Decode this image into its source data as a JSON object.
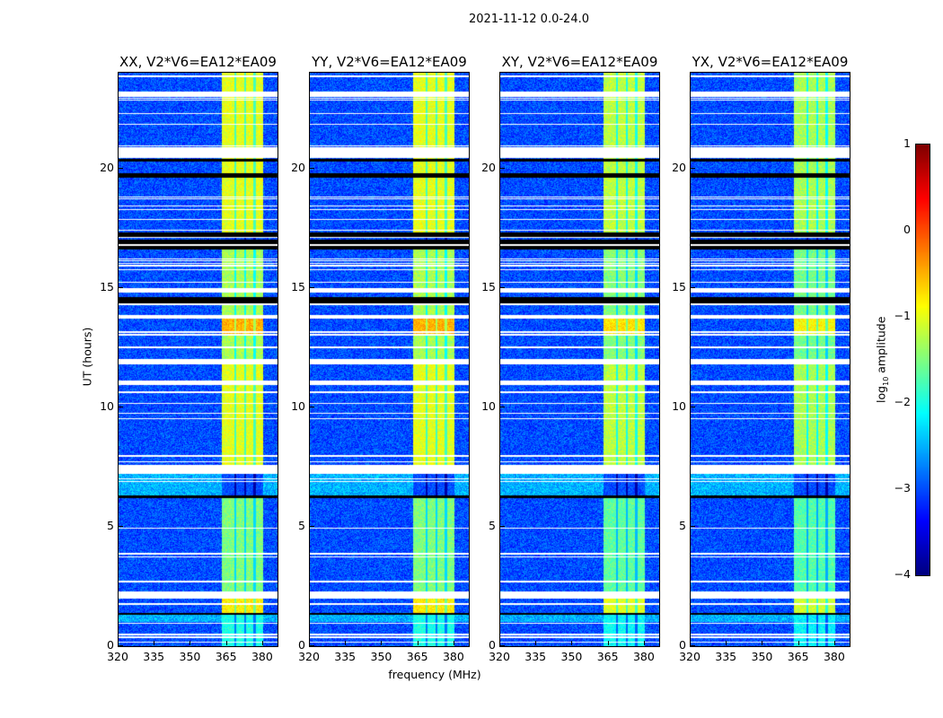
{
  "chart_data": {
    "type": "heatmap",
    "suptitle": "2021-11-12 0.0-24.0",
    "xlabel": "frequency (MHz)",
    "ylabel": "UT (hours)",
    "xlim": [
      320,
      386
    ],
    "ylim": [
      0,
      24
    ],
    "xticks": [
      320,
      335,
      350,
      365,
      380
    ],
    "yticks": [
      0,
      5,
      10,
      15,
      20
    ],
    "panels": [
      {
        "title": "XX, V2*V6=EA12*EA09",
        "band_scale": 1.0
      },
      {
        "title": "YY, V2*V6=EA12*EA09",
        "band_scale": 1.0
      },
      {
        "title": "XY, V2*V6=EA12*EA09",
        "band_scale": 0.9
      },
      {
        "title": "YX, V2*V6=EA12*EA09",
        "band_scale": 0.85
      }
    ],
    "colorbar": {
      "label": "log10 amplitude",
      "label_main": "log",
      "label_sub": "10",
      "label_rest": " amplitude",
      "colormap": "jet",
      "vmin": -4,
      "vmax": 1,
      "ticks": [
        1,
        0,
        -1,
        -2,
        -3,
        -4
      ],
      "tick_labels": [
        "1",
        "0",
        "−1",
        "−2",
        "−3",
        "−4"
      ]
    },
    "background_log_amp": -3.0,
    "rfi_band_mhz": [
      363,
      380
    ],
    "rfi_band_gaps_mhz": [
      368.5,
      372.5,
      376.5
    ],
    "band_segments_hours": [
      {
        "from": 0.0,
        "to": 1.3,
        "level": -2.0
      },
      {
        "from": 1.4,
        "to": 2.0,
        "level": -0.8
      },
      {
        "from": 2.3,
        "to": 6.2,
        "level": -1.5
      },
      {
        "from": 6.3,
        "to": 7.3,
        "level": -3.0
      },
      {
        "from": 7.6,
        "to": 11.8,
        "level": -1.0
      },
      {
        "from": 12.0,
        "to": 13.0,
        "level": -1.3
      },
      {
        "from": 13.0,
        "to": 13.7,
        "level": -0.5
      },
      {
        "from": 13.7,
        "to": 16.6,
        "level": -1.3
      },
      {
        "from": 17.3,
        "to": 20.5,
        "level": -1.0
      },
      {
        "from": 20.9,
        "to": 24.0,
        "level": -1.0
      }
    ],
    "flagged_white_hours": [
      [
        2.0,
        2.3
      ],
      [
        7.3,
        7.6
      ],
      [
        11.8,
        12.0
      ],
      [
        14.8,
        15.0
      ],
      [
        20.5,
        20.9
      ]
    ],
    "flagged_black_hours": [
      [
        1.3,
        1.4
      ],
      [
        6.2,
        6.3
      ],
      [
        14.3,
        14.6
      ],
      [
        16.6,
        17.0
      ],
      [
        17.1,
        17.3
      ],
      [
        19.6,
        19.8
      ],
      [
        20.3,
        20.4
      ]
    ]
  }
}
